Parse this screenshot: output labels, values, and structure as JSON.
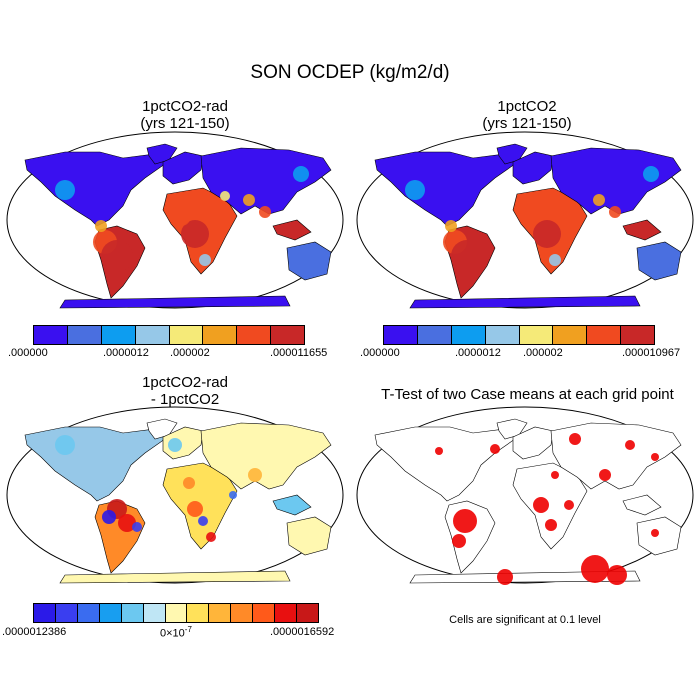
{
  "figure": {
    "title": "SON OCDEP (kg/m2/d)"
  },
  "panels": {
    "top_left": {
      "title": "1pctCO2-rad\n(yrs 121-150)",
      "colorbar": {
        "colors": [
          "#3a10f0",
          "#4a6fe0",
          "#0d9df0",
          "#96c8e8",
          "#f5ea78",
          "#f0a020",
          "#f04a20",
          "#c82828"
        ],
        "labels": [
          ".000000",
          ".0000012",
          ".000002",
          ".000011655"
        ]
      }
    },
    "top_right": {
      "title": "1pctCO2\n(yrs 121-150)",
      "colorbar": {
        "colors": [
          "#3a10f0",
          "#4a6fe0",
          "#0d9df0",
          "#96c8e8",
          "#f5ea78",
          "#f0a020",
          "#f04a20",
          "#c82828"
        ],
        "labels": [
          ".000000",
          ".0000012",
          ".000002",
          ".000010967"
        ]
      }
    },
    "bottom_left": {
      "title": "1pctCO2-rad\n- 1pctCO2",
      "colorbar": {
        "colors": [
          "#2b1ae8",
          "#3a3ef0",
          "#3a6cf0",
          "#189ef0",
          "#6cc8f0",
          "#bfe6f5",
          "#fff8b0",
          "#ffe15a",
          "#ffb53a",
          "#ff8a28",
          "#ff5a1a",
          "#e81010",
          "#c81818"
        ],
        "label_left": ".0000012386",
        "label_center": "0×10",
        "label_center_exp": "-7",
        "label_right": ".0000016592"
      }
    },
    "bottom_right": {
      "title": "T-Test of two Case means at each grid point",
      "note": "Cells are significant at 0.1 level",
      "marker_color": "#ee0000"
    }
  }
}
